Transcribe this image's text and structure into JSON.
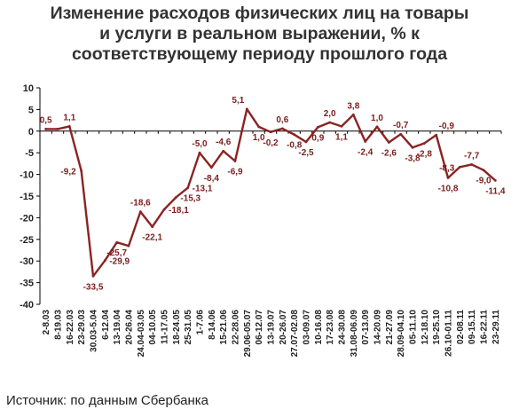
{
  "title_lines": [
    "Изменение расходов физических лиц на товары",
    "и услуги в реальном выражении, % к",
    "соответствующему периоду прошлого года"
  ],
  "source": "Источник: по данным Сбербанка",
  "colors": {
    "line": "#8B2323",
    "label": "#7a1e1e",
    "axis": "#000000",
    "text": "#222222"
  },
  "chart_data": {
    "type": "line",
    "title": "Изменение расходов физических лиц на товары и услуги в реальном выражении, % к соответствующему периоду прошлого года",
    "ylim": [
      -40,
      10
    ],
    "yticks": [
      10,
      5,
      0,
      -5,
      -10,
      -15,
      -20,
      -25,
      -30,
      -35,
      -40
    ],
    "grid": false,
    "x_tick_labels": [
      "2-8.03",
      "8-19.03",
      "16-22.03",
      "23-29.03",
      "30.03-5.04",
      "6-12.04",
      "13-19.04",
      "20-26.04",
      "24.04-03.05",
      "04-10.05",
      "11-17.05",
      "18-24.05",
      "25-31.05",
      "1-7.06",
      "8-14.06",
      "15-21.06",
      "22-28.06",
      "29.06-05.07",
      "06-12.07",
      "13-19.07",
      "20-26.07",
      "27.07-02.08",
      "03-09.07",
      "10-16.08",
      "17-23.08",
      "24-30.08",
      "31.08-06.09",
      "07-13.09",
      "14-20.09",
      "21-27.09",
      "28.09-04.10",
      "05-11.10",
      "12-18.10",
      "19-25.10",
      "26.10-01.11",
      "02-08.11",
      "09-15.11",
      "16-22.11",
      "23-29.11"
    ],
    "series": [
      {
        "values": [
          0.5,
          0.5,
          1.1,
          -9.2,
          -33.5,
          -29.9,
          -25.7,
          -26.5,
          -18.6,
          -22.1,
          -18.1,
          -15.3,
          -13.1,
          -5.0,
          -8.4,
          -4.6,
          -6.9,
          5.1,
          1.0,
          -0.2,
          0.6,
          -0.8,
          -2.5,
          0.9,
          2.0,
          1.1,
          3.8,
          -2.4,
          1.0,
          -2.6,
          -0.7,
          -3.8,
          -2.8,
          -0.9,
          -10.8,
          -8.3,
          -7.7,
          -9.0,
          -11.4
        ]
      }
    ],
    "data_labels": [
      {
        "i": 0,
        "text": "0,5",
        "pos": "above"
      },
      {
        "i": 2,
        "text": "1,1",
        "pos": "above"
      },
      {
        "i": 3,
        "text": "-9,2",
        "pos": "left"
      },
      {
        "i": 4,
        "text": "-33,5",
        "pos": "below"
      },
      {
        "i": 5,
        "text": "-29,9",
        "pos": "right"
      },
      {
        "i": 6,
        "text": "-25,7",
        "pos": "below"
      },
      {
        "i": 8,
        "text": "-18,6",
        "pos": "above"
      },
      {
        "i": 9,
        "text": "-22,1",
        "pos": "below"
      },
      {
        "i": 10,
        "text": "-18,1",
        "pos": "right"
      },
      {
        "i": 11,
        "text": "-15,3",
        "pos": "right"
      },
      {
        "i": 12,
        "text": "-13,1",
        "pos": "right"
      },
      {
        "i": 13,
        "text": "-5,0",
        "pos": "above"
      },
      {
        "i": 14,
        "text": "-8,4",
        "pos": "below"
      },
      {
        "i": 15,
        "text": "-4,6",
        "pos": "above"
      },
      {
        "i": 16,
        "text": "-6,9",
        "pos": "below"
      },
      {
        "i": 17,
        "text": "5,1",
        "pos": "aboveleft"
      },
      {
        "i": 18,
        "text": "1,0",
        "pos": "below"
      },
      {
        "i": 19,
        "text": "-0,2",
        "pos": "below"
      },
      {
        "i": 20,
        "text": "0,6",
        "pos": "above"
      },
      {
        "i": 21,
        "text": "-0,8",
        "pos": "below"
      },
      {
        "i": 22,
        "text": "-2,5",
        "pos": "below"
      },
      {
        "i": 23,
        "text": "0,9",
        "pos": "below"
      },
      {
        "i": 24,
        "text": "2,0",
        "pos": "above"
      },
      {
        "i": 25,
        "text": "1,1",
        "pos": "below"
      },
      {
        "i": 26,
        "text": "3,8",
        "pos": "above"
      },
      {
        "i": 27,
        "text": "-2,4",
        "pos": "below"
      },
      {
        "i": 28,
        "text": "1,0",
        "pos": "above"
      },
      {
        "i": 29,
        "text": "-2,6",
        "pos": "below"
      },
      {
        "i": 30,
        "text": "-0,7",
        "pos": "above"
      },
      {
        "i": 31,
        "text": "-3,8",
        "pos": "below"
      },
      {
        "i": 32,
        "text": "-2,8",
        "pos": "below"
      },
      {
        "i": 33,
        "text": "-0,9",
        "pos": "aboveright"
      },
      {
        "i": 34,
        "text": "-10,8",
        "pos": "below"
      },
      {
        "i": 35,
        "text": "-8,3",
        "pos": "left"
      },
      {
        "i": 36,
        "text": "-7,7",
        "pos": "above"
      },
      {
        "i": 37,
        "text": "-9,0",
        "pos": "below"
      },
      {
        "i": 38,
        "text": "-11,4",
        "pos": "below"
      }
    ]
  }
}
